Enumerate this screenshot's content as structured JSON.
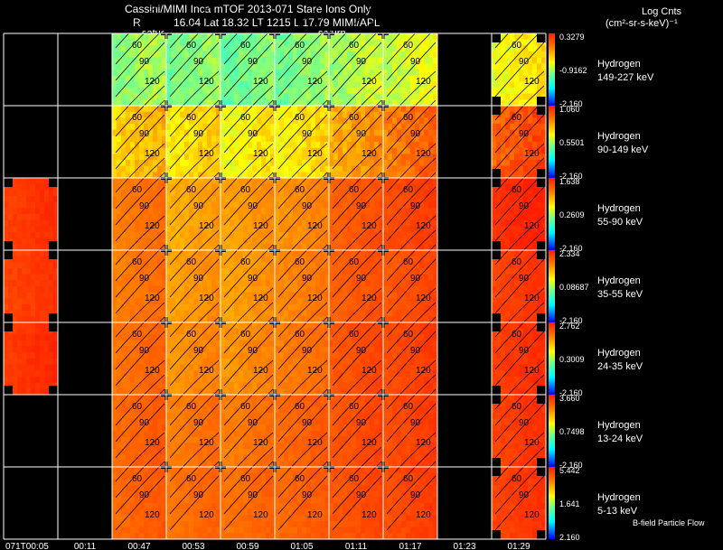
{
  "header": {
    "title": "Cassini/MIMI Inca mTOF  2013-071   Stare   Ions Only",
    "r_label": "R",
    "position_line": "16.04 Lat 18.32 LT 1215 L       17.79  MIMI/APL",
    "saturn_label_1": "satur",
    "saturn_label_2": "saturn",
    "units_title": "Log Cnts",
    "units": "(cm²-sr-s-keV)⁻¹"
  },
  "footer": {
    "flow_note": "B-field Particle Flow"
  },
  "chart_data": {
    "type": "heatmap",
    "title": "Cassini/MIMI Inca mTOF 2013-071 Stare Ions Only",
    "time_labels": [
      "071T00:05",
      "00:11",
      "00:47",
      "00:53",
      "00:59",
      "01:05",
      "01:11",
      "01:17",
      "01:23",
      "01:29"
    ],
    "pitch_angle_labels": [
      "60",
      "90",
      "120"
    ],
    "rows": [
      {
        "species": "Hydrogen",
        "energy": "149-227 keV",
        "scale_max": "0.3279",
        "scale_mid": "-0.9162",
        "scale_min": "-2.160"
      },
      {
        "species": "Hydrogen",
        "energy": "90-149 keV",
        "scale_max": "1.060",
        "scale_mid": "0.5501",
        "scale_min": "-2.160"
      },
      {
        "species": "Hydrogen",
        "energy": "55-90 keV",
        "scale_max": "1.638",
        "scale_mid": "0.2609",
        "scale_min": "-2.160"
      },
      {
        "species": "Hydrogen",
        "energy": "35-55 keV",
        "scale_max": "2.334",
        "scale_mid": "0.08687",
        "scale_min": "-2.160"
      },
      {
        "species": "Hydrogen",
        "energy": "24-35 keV",
        "scale_max": "2.762",
        "scale_mid": "0.3009",
        "scale_min": "-2.160"
      },
      {
        "species": "Hydrogen",
        "energy": "13-24 keV",
        "scale_max": "3.660",
        "scale_mid": "0.7498",
        "scale_min": "-2.160"
      },
      {
        "species": "Hydrogen",
        "energy": "5-13 keV",
        "scale_max": "5.442",
        "scale_mid": "1.641",
        "scale_min": "2.160"
      }
    ],
    "intensity_fraction": [
      [
        null,
        null,
        0.45,
        0.42,
        0.4,
        0.42,
        0.48,
        0.52,
        null,
        0.58
      ],
      [
        null,
        null,
        0.66,
        0.62,
        0.58,
        0.6,
        0.72,
        0.8,
        null,
        0.86
      ],
      [
        0.93,
        null,
        0.8,
        0.72,
        0.74,
        0.76,
        0.86,
        0.9,
        null,
        0.96
      ],
      [
        0.92,
        null,
        0.8,
        0.74,
        0.74,
        0.78,
        0.86,
        0.88,
        null,
        0.92
      ],
      [
        0.94,
        null,
        0.82,
        0.76,
        0.76,
        0.8,
        0.88,
        0.9,
        null,
        0.93
      ],
      [
        null,
        null,
        0.84,
        0.8,
        0.8,
        0.84,
        0.88,
        0.9,
        null,
        0.92
      ],
      [
        null,
        null,
        0.84,
        0.82,
        0.82,
        0.84,
        0.88,
        0.9,
        null,
        0.92
      ]
    ]
  }
}
